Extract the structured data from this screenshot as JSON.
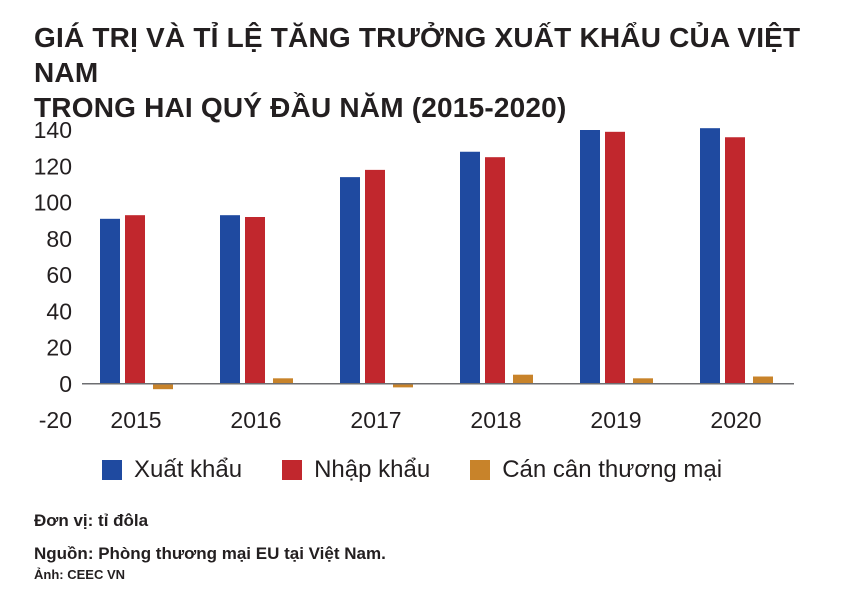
{
  "title": {
    "line1": "GIÁ TRỊ VÀ TỈ LỆ TĂNG TRƯỞNG XUẤT KHẨU CỦA VIỆT NAM",
    "line2": "TRONG HAI QUÝ ĐẦU NĂM (2015-2020)"
  },
  "chart_data": {
    "type": "bar",
    "categories": [
      "2015",
      "2016",
      "2017",
      "2018",
      "2019",
      "2020"
    ],
    "series": [
      {
        "name": "Xuất khẩu",
        "color": "#1f4aa0",
        "values": [
          91,
          93,
          114,
          128,
          140,
          141
        ]
      },
      {
        "name": "Nhập khẩu",
        "color": "#c1272d",
        "values": [
          93,
          92,
          118,
          125,
          139,
          136
        ]
      },
      {
        "name": "Cán cân thương mại",
        "color": "#c8832a",
        "values": [
          -3,
          3,
          -2,
          5,
          3,
          4
        ]
      }
    ],
    "yticks": [
      "140",
      "120",
      "100",
      "80",
      "60",
      "40",
      "20",
      "0",
      "-20"
    ],
    "ylim": [
      -20,
      140
    ],
    "grid": false,
    "legend": "bottom"
  },
  "footer": {
    "unit": "Đơn vị: tỉ đôla",
    "source": "Nguồn: Phòng thương mại EU tại Việt Nam.",
    "credit": "Ảnh: CEEC VN"
  }
}
